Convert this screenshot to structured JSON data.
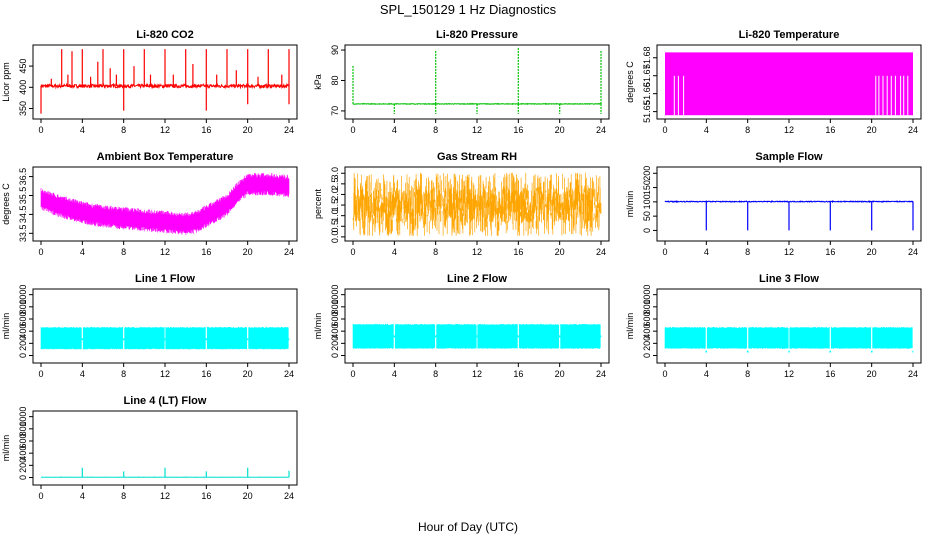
{
  "figure": {
    "title": "SPL_150129  1 Hz Diagnostics",
    "xlabel": "Hour of Day (UTC)"
  },
  "chart_data": [
    {
      "id": "co2",
      "type": "line",
      "title": "Li-820 CO2",
      "ylabel": "Licor ppm",
      "color": "#ff0000",
      "xlim": [
        0,
        24
      ],
      "ylim": [
        330,
        495
      ],
      "xticks": [
        0,
        4,
        8,
        12,
        16,
        20,
        24
      ],
      "yticks": [
        350,
        400,
        450
      ],
      "ytick_labels": [
        "350",
        "400",
        "450"
      ],
      "series": [
        {
          "baseline": 403,
          "noise": 4,
          "spikes": [
            [
              1.0,
              420
            ],
            [
              2.0,
              490
            ],
            [
              2.6,
              430
            ],
            [
              3.0,
              485
            ],
            [
              4.0,
              490
            ],
            [
              4.8,
              425
            ],
            [
              5.5,
              460
            ],
            [
              6.0,
              490
            ],
            [
              6.7,
              445
            ],
            [
              7.3,
              430
            ],
            [
              8.0,
              490
            ],
            [
              8.0,
              345
            ],
            [
              9.0,
              450
            ],
            [
              10.0,
              490
            ],
            [
              10.6,
              430
            ],
            [
              12.0,
              490
            ],
            [
              12.8,
              430
            ],
            [
              14.0,
              490
            ],
            [
              14.7,
              455
            ],
            [
              16.0,
              490
            ],
            [
              16.0,
              345
            ],
            [
              17.0,
              430
            ],
            [
              18.0,
              490
            ],
            [
              18.9,
              440
            ],
            [
              20.0,
              490
            ],
            [
              20.0,
              360
            ],
            [
              21.0,
              425
            ],
            [
              22.0,
              490
            ],
            [
              23.3,
              430
            ],
            [
              24.0,
              490
            ],
            [
              24.0,
              360
            ]
          ],
          "dips": [
            [
              0.0,
              338
            ],
            [
              8.0,
              350
            ],
            [
              16.0,
              345
            ],
            [
              24.0,
              360
            ]
          ]
        }
      ]
    },
    {
      "id": "pressure",
      "type": "line",
      "title": "Li-820 Pressure",
      "ylabel": "kPa",
      "color": "#00c000",
      "xlim": [
        0,
        24
      ],
      "ylim": [
        68,
        91
      ],
      "xticks": [
        0,
        4,
        8,
        12,
        16,
        20,
        24
      ],
      "yticks": [
        70,
        80,
        90
      ],
      "ytick_labels": [
        "70",
        "80",
        "90"
      ],
      "series": [
        {
          "baseline": 72.3,
          "noise": 0.1,
          "spikes": [
            [
              0.0,
              85
            ],
            [
              8.0,
              90
            ],
            [
              16.0,
              91
            ],
            [
              24.0,
              90
            ]
          ],
          "dips": [
            [
              4.0,
              69
            ],
            [
              8.0,
              69
            ],
            [
              12.0,
              69
            ],
            [
              16.0,
              69
            ],
            [
              20.0,
              69
            ],
            [
              24.0,
              69
            ]
          ]
        }
      ]
    },
    {
      "id": "licor_temp",
      "type": "line",
      "title": "Li-820 Temperature",
      "ylabel": "degrees C",
      "color": "#ff00ff",
      "xlim": [
        0,
        24
      ],
      "ylim": [
        51.647,
        51.686
      ],
      "xticks": [
        0,
        4,
        8,
        12,
        16,
        20,
        24
      ],
      "yticks": [
        51.65,
        51.66,
        51.67,
        51.68
      ],
      "ytick_labels": [
        "51.65",
        "51.66",
        "51.67",
        "51.68"
      ],
      "series": [
        {
          "low": 51.648,
          "high": 51.683
        }
      ]
    },
    {
      "id": "box_temp",
      "type": "line",
      "title": "Ambient Box Temperature",
      "ylabel": "degrees C",
      "color": "#ff00ff",
      "xlim": [
        0,
        24
      ],
      "ylim": [
        33.2,
        36.9
      ],
      "xticks": [
        0,
        4,
        8,
        12,
        16,
        20,
        24
      ],
      "yticks": [
        33.5,
        34.5,
        35.5,
        36.5
      ],
      "ytick_labels": [
        "33.5",
        "34.5",
        "35.5",
        "36.5"
      ],
      "series": [
        {
          "centerline": [
            [
              0,
              35.3
            ],
            [
              2,
              34.9
            ],
            [
              4,
              34.6
            ],
            [
              6,
              34.4
            ],
            [
              8,
              34.3
            ],
            [
              10,
              34.2
            ],
            [
              12,
              34.1
            ],
            [
              14,
              34.0
            ],
            [
              15,
              34.1
            ],
            [
              16,
              34.4
            ],
            [
              18,
              35.0
            ],
            [
              19,
              35.6
            ],
            [
              20,
              36.1
            ],
            [
              22,
              36.1
            ],
            [
              24,
              36.0
            ]
          ],
          "band": 0.35,
          "noise": 0.25
        }
      ]
    },
    {
      "id": "rh",
      "type": "line",
      "title": "Gas Stream RH",
      "ylabel": "percent",
      "color": "#ffa500",
      "xlim": [
        0,
        24
      ],
      "ylim": [
        -0.1,
        3.2
      ],
      "xticks": [
        0,
        4,
        8,
        12,
        16,
        20,
        24
      ],
      "yticks": [
        0.0,
        0.5,
        1.0,
        1.5,
        2.0,
        2.5,
        3.0
      ],
      "ytick_labels": [
        "0.0",
        "0.5",
        "1.0",
        "1.5",
        "2.0",
        "2.5",
        "3.0"
      ],
      "series": [
        {
          "mean": 1.5,
          "spread": 1.6,
          "min": 0.05,
          "max": 3.05
        }
      ]
    },
    {
      "id": "sample_flow",
      "type": "line",
      "title": "Sample Flow",
      "ylabel": "ml/min",
      "color": "#0000ff",
      "xlim": [
        0,
        24
      ],
      "ylim": [
        -30,
        215
      ],
      "xticks": [
        0,
        4,
        8,
        12,
        16,
        20,
        24
      ],
      "yticks": [
        0,
        50,
        100,
        150,
        200
      ],
      "ytick_labels": [
        "0",
        "50",
        "100",
        "150",
        "200"
      ],
      "series": [
        {
          "baseline": 101,
          "noise": 1.5,
          "dips": [
            [
              4.0,
              0
            ],
            [
              8.0,
              0
            ],
            [
              12.0,
              0
            ],
            [
              16.0,
              0
            ],
            [
              20.0,
              0
            ],
            [
              24.0,
              0
            ]
          ]
        }
      ]
    },
    {
      "id": "line1",
      "type": "line",
      "title": "Line 1 Flow",
      "ylabel": "ml/min",
      "color": "#00ffff",
      "xlim": [
        0,
        24
      ],
      "ylim": [
        -90,
        1060
      ],
      "xticks": [
        0,
        4,
        8,
        12,
        16,
        20,
        24
      ],
      "yticks": [
        0,
        200,
        400,
        600,
        800,
        1000
      ],
      "ytick_labels": [
        "0",
        "200",
        "400",
        "600",
        "800",
        "1000"
      ],
      "series": [
        {
          "low": 100,
          "high": 470,
          "gaps": [
            4,
            8,
            12,
            16,
            20,
            24
          ],
          "gap_level": 250
        }
      ]
    },
    {
      "id": "line2",
      "type": "line",
      "title": "Line 2 Flow",
      "ylabel": "ml/min",
      "color": "#00ffff",
      "xlim": [
        0,
        24
      ],
      "ylim": [
        -90,
        1060
      ],
      "xticks": [
        0,
        4,
        8,
        12,
        16,
        20,
        24
      ],
      "yticks": [
        0,
        200,
        400,
        600,
        800,
        1000
      ],
      "ytick_labels": [
        "0",
        "200",
        "400",
        "600",
        "800",
        "1000"
      ],
      "series": [
        {
          "low": 110,
          "high": 520,
          "gaps": [
            4,
            8,
            12,
            16,
            20,
            24
          ],
          "gap_level": 300
        }
      ]
    },
    {
      "id": "line3",
      "type": "line",
      "title": "Line 3 Flow",
      "ylabel": "ml/min",
      "color": "#00ffff",
      "xlim": [
        0,
        24
      ],
      "ylim": [
        -90,
        1060
      ],
      "xticks": [
        0,
        4,
        8,
        12,
        16,
        20,
        24
      ],
      "yticks": [
        0,
        200,
        400,
        600,
        800,
        1000
      ],
      "ytick_labels": [
        "0",
        "200",
        "400",
        "600",
        "800",
        "1000"
      ],
      "series": [
        {
          "low": 110,
          "high": 470,
          "gaps": [
            4,
            8,
            12,
            16,
            20,
            24
          ],
          "gap_level": 50
        }
      ]
    },
    {
      "id": "line4",
      "type": "line",
      "title": "Line 4 (LT) Flow",
      "ylabel": "ml/min",
      "color": "#00e0d0",
      "xlim": [
        0,
        24
      ],
      "ylim": [
        -90,
        1060
      ],
      "xticks": [
        0,
        4,
        8,
        12,
        16,
        20,
        24
      ],
      "yticks": [
        0,
        200,
        400,
        600,
        800,
        1000
      ],
      "ytick_labels": [
        "0",
        "200",
        "400",
        "600",
        "800",
        "1000"
      ],
      "series": [
        {
          "baseline": 5,
          "noise": 2,
          "spikes": [
            [
              4.0,
              160
            ],
            [
              8.0,
              100
            ],
            [
              12.0,
              160
            ],
            [
              16.0,
              100
            ],
            [
              20.0,
              160
            ],
            [
              24.0,
              110
            ]
          ]
        }
      ]
    }
  ]
}
